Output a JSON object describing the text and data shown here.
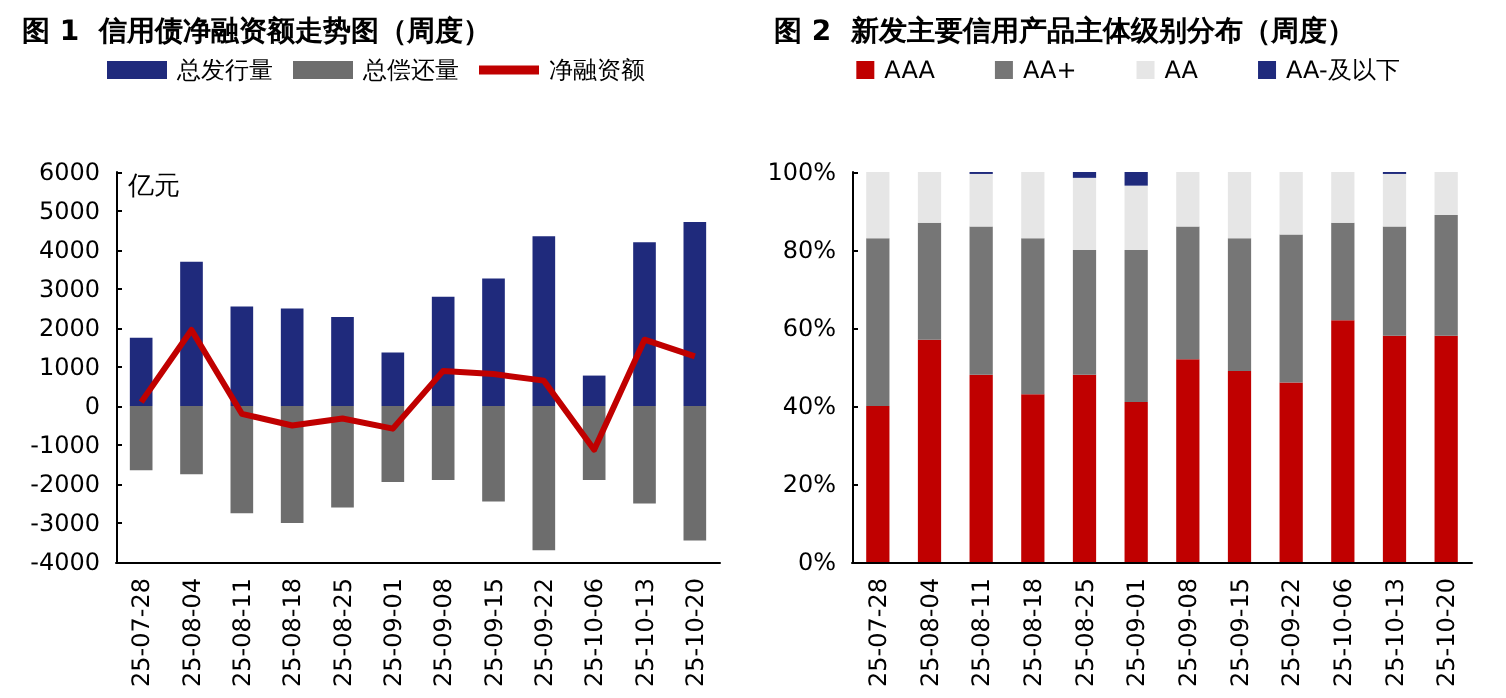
{
  "chart_data": [
    {
      "type": "bar",
      "title": "图 1  信用债净融资额走势图（周度）",
      "ylabel": "亿元",
      "categories": [
        "25-07-28",
        "25-08-04",
        "25-08-11",
        "25-08-18",
        "25-08-25",
        "25-09-01",
        "25-09-08",
        "25-09-15",
        "25-09-22",
        "25-10-06",
        "25-10-13",
        "25-10-20"
      ],
      "series": [
        {
          "name": "总发行量",
          "color": "#1f2a7c",
          "values": [
            1750,
            3700,
            2550,
            2500,
            2280,
            1370,
            2800,
            3270,
            4350,
            780,
            4200,
            4720
          ]
        },
        {
          "name": "总偿还量",
          "color": "#6d6d6d",
          "values": [
            -1650,
            -1750,
            -2750,
            -3000,
            -2600,
            -1950,
            -1900,
            -2450,
            -3700,
            -1900,
            -2500,
            -3450
          ]
        },
        {
          "name": "净融资额",
          "type": "line",
          "color": "#c00000",
          "marker": "none",
          "values": [
            100,
            1950,
            -200,
            -500,
            -320,
            -580,
            900,
            820,
            650,
            -1120,
            1700,
            1270
          ]
        }
      ],
      "stacked": true,
      "ylim": [
        -4000,
        6000
      ],
      "yticks": [
        -4000,
        -3000,
        -2000,
        -1000,
        0,
        1000,
        2000,
        3000,
        4000,
        5000,
        6000
      ],
      "grid": false,
      "legend": "top"
    },
    {
      "type": "bar",
      "title": "图 2  新发主要信用产品主体级别分布（周度）",
      "categories": [
        "25-07-28",
        "25-08-04",
        "25-08-11",
        "25-08-18",
        "25-08-25",
        "25-09-01",
        "25-09-08",
        "25-09-15",
        "25-09-22",
        "25-10-06",
        "25-10-13",
        "25-10-20"
      ],
      "series": [
        {
          "name": "AAA",
          "color": "#c00000",
          "values": [
            40,
            57,
            48,
            43,
            48,
            41,
            52,
            49,
            46,
            62,
            58,
            58
          ]
        },
        {
          "name": "AA+",
          "color": "#767676",
          "values": [
            43,
            30,
            38,
            40,
            32,
            39,
            34,
            34,
            38,
            25,
            28,
            31
          ]
        },
        {
          "name": "AA",
          "color": "#e6e6e6",
          "values": [
            17,
            13,
            13.5,
            17,
            18.5,
            16.5,
            14,
            17,
            16,
            13,
            13.5,
            11
          ]
        },
        {
          "name": "AA-及以下",
          "color": "#1f2a7c",
          "values": [
            0,
            0,
            0.5,
            0,
            1.5,
            3.5,
            0,
            0,
            0,
            0,
            0.5,
            0
          ]
        }
      ],
      "stacked": true,
      "ylim": [
        0,
        100
      ],
      "yticks": [
        {
          "value": 0,
          "label": "0%"
        },
        {
          "value": 20,
          "label": "20%"
        },
        {
          "value": 40,
          "label": "40%"
        },
        {
          "value": 60,
          "label": "60%"
        },
        {
          "value": 80,
          "label": "80%"
        },
        {
          "value": 100,
          "label": "100%"
        }
      ],
      "grid": false,
      "legend": "top"
    }
  ]
}
